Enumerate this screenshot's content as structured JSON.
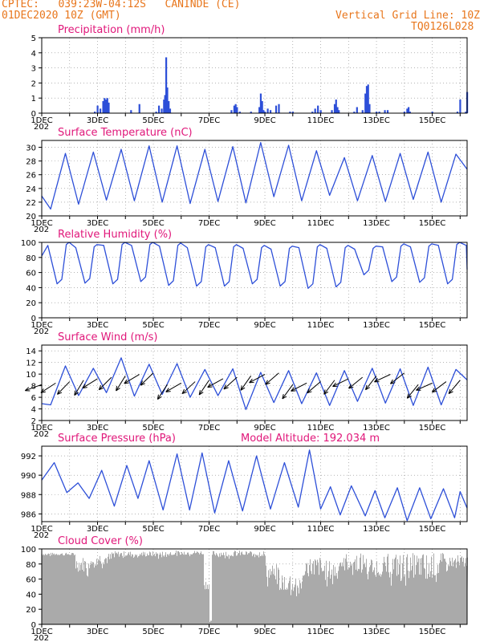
{
  "header": {
    "line1": "CPTEC:   039:23W-04:12S   CANINDE (CE)",
    "line2": "01DEC2020 10Z (GMT)",
    "grid_note": "Vertical Grid Line: 10Z",
    "code": "TQ0126L028"
  },
  "x_axis": {
    "tick_labels": [
      "1DEC",
      "3DEC",
      "5DEC",
      "7DEC",
      "9DEC",
      "11DEC",
      "13DEC",
      "15DEC"
    ],
    "cut_label": "202",
    "range_days": [
      0,
      15.25
    ]
  },
  "colors": {
    "title": "#e0177a",
    "header": "#e8761c",
    "line": "#2d4fd8",
    "bar": "#2d4fd8",
    "cloud": "#aaaaaa"
  },
  "chart_data": [
    {
      "type": "bar",
      "title": "Precipitation (mm/h)",
      "ylim": [
        0,
        5
      ],
      "yticks": [
        0,
        1,
        2,
        3,
        4,
        5
      ],
      "x_unit": "days since 01DEC2020 10Z",
      "x": [
        1.9,
        2.0,
        2.1,
        2.2,
        2.25,
        2.3,
        2.35,
        2.4,
        3.2,
        3.5,
        4.1,
        4.2,
        4.3,
        4.38,
        4.42,
        4.46,
        4.5,
        4.55,
        4.6,
        6.8,
        6.9,
        6.95,
        7.0,
        7.1,
        7.5,
        7.8,
        7.85,
        7.9,
        7.95,
        8.0,
        8.1,
        8.2,
        8.4,
        8.5,
        8.9,
        9.0,
        9.7,
        9.8,
        9.9,
        10.0,
        10.4,
        10.5,
        10.55,
        10.6,
        10.65,
        11.2,
        11.3,
        11.5,
        11.6,
        11.65,
        11.7,
        11.75,
        12.0,
        12.1,
        12.3,
        12.4,
        13.0,
        13.1,
        13.15,
        13.2,
        14.0,
        14.9,
        15.0,
        15.2,
        15.25
      ],
      "values": [
        0.1,
        0.5,
        0.3,
        0.8,
        1.0,
        0.9,
        1.0,
        0.7,
        0.2,
        0.6,
        0.1,
        0.5,
        0.3,
        0.9,
        1.2,
        3.7,
        1.7,
        0.8,
        0.3,
        0.2,
        0.5,
        0.6,
        0.4,
        0.1,
        0.1,
        0.4,
        1.3,
        0.8,
        0.2,
        0.1,
        0.3,
        0.2,
        0.5,
        0.6,
        0.1,
        0.1,
        0.1,
        0.3,
        0.5,
        0.2,
        0.2,
        0.6,
        0.9,
        0.4,
        0.2,
        0.1,
        0.4,
        0.2,
        1.3,
        1.8,
        1.9,
        0.6,
        0.1,
        0.1,
        0.2,
        0.2,
        0.1,
        0.3,
        0.4,
        0.1,
        0.1,
        0.1,
        0.9,
        0.1,
        1.4
      ]
    },
    {
      "type": "line",
      "title": "Surface Temperature (nC)",
      "ylim": [
        20,
        31
      ],
      "yticks": [
        20,
        22,
        24,
        26,
        28,
        30
      ],
      "min_max": [
        [
          21.0,
          29.1
        ],
        [
          21.7,
          29.3
        ],
        [
          22.3,
          29.7
        ],
        [
          22.2,
          30.2
        ],
        [
          22.0,
          30.2
        ],
        [
          21.8,
          29.7
        ],
        [
          22.1,
          30.1
        ],
        [
          21.9,
          30.7
        ],
        [
          22.8,
          30.3
        ],
        [
          22.2,
          29.5
        ],
        [
          23.0,
          28.5
        ],
        [
          22.2,
          28.8
        ],
        [
          22.1,
          29.1
        ],
        [
          22.4,
          29.3
        ],
        [
          22.0,
          29.0
        ],
        [
          23.2,
          30.8
        ]
      ],
      "start": 22.9,
      "end": 26.8
    },
    {
      "type": "line",
      "title": "Relative Humidity (%)",
      "ylim": [
        0,
        100
      ],
      "yticks": [
        0,
        20,
        40,
        60,
        80,
        100
      ],
      "min_max": [
        [
          45,
          100
        ],
        [
          46,
          97
        ],
        [
          45,
          100
        ],
        [
          48,
          100
        ],
        [
          43,
          99
        ],
        [
          42,
          97
        ],
        [
          42,
          97
        ],
        [
          45,
          96
        ],
        [
          42,
          95
        ],
        [
          39,
          97
        ],
        [
          41,
          96
        ],
        [
          57,
          95
        ],
        [
          48,
          98
        ],
        [
          47,
          98
        ],
        [
          45,
          100
        ],
        [
          38,
          100
        ]
      ],
      "start": 82,
      "end": 64
    },
    {
      "type": "line",
      "title": "Surface Wind (m/s)",
      "ylim": [
        2,
        15
      ],
      "yticks": [
        2,
        4,
        6,
        8,
        10,
        12,
        14
      ],
      "daily_speed_min_max": [
        [
          4.7,
          11.4
        ],
        [
          6.3,
          11.0
        ],
        [
          6.8,
          12.8
        ],
        [
          6.2,
          11.7
        ],
        [
          6.5,
          11.8
        ],
        [
          6.0,
          10.8
        ],
        [
          6.3,
          10.9
        ],
        [
          3.9,
          10.3
        ],
        [
          5.1,
          10.6
        ],
        [
          4.9,
          10.2
        ],
        [
          4.6,
          10.6
        ],
        [
          5.3,
          11.0
        ],
        [
          5.0,
          10.9
        ],
        [
          4.6,
          11.2
        ],
        [
          4.7,
          10.8
        ],
        [
          3.6,
          11.1
        ]
      ],
      "start": 4.9,
      "end": 9.0,
      "arrows": "easterly trade-wind vectors every 12 h"
    },
    {
      "type": "line",
      "title": "Surface Pressure (hPa)",
      "annotation": "Model Altitude: 192.034  m",
      "ylim": [
        985.2,
        993.0
      ],
      "yticks": [
        986,
        988,
        990,
        992
      ],
      "peaks_troughs": [
        [
          0,
          989.5
        ],
        [
          0.45,
          991.3
        ],
        [
          0.9,
          988.2
        ],
        [
          1.3,
          989.2
        ],
        [
          1.7,
          987.6
        ],
        [
          2.15,
          990.5
        ],
        [
          2.6,
          986.8
        ],
        [
          3.05,
          991.0
        ],
        [
          3.45,
          987.6
        ],
        [
          3.85,
          991.5
        ],
        [
          4.35,
          986.4
        ],
        [
          4.85,
          992.2
        ],
        [
          5.3,
          986.4
        ],
        [
          5.75,
          992.3
        ],
        [
          6.2,
          986.1
        ],
        [
          6.7,
          991.5
        ],
        [
          7.2,
          986.3
        ],
        [
          7.7,
          992.0
        ],
        [
          8.2,
          986.5
        ],
        [
          8.7,
          991.3
        ],
        [
          9.2,
          986.7
        ],
        [
          9.6,
          992.6
        ],
        [
          10.0,
          986.5
        ],
        [
          10.35,
          988.8
        ],
        [
          10.7,
          985.9
        ],
        [
          11.1,
          988.9
        ],
        [
          11.6,
          985.8
        ],
        [
          11.95,
          988.4
        ],
        [
          12.3,
          985.6
        ],
        [
          12.75,
          988.7
        ],
        [
          13.1,
          985.3
        ],
        [
          13.55,
          988.7
        ],
        [
          13.95,
          985.5
        ],
        [
          14.4,
          988.6
        ],
        [
          14.8,
          985.6
        ],
        [
          15.0,
          988.3
        ],
        [
          15.25,
          986.6
        ]
      ]
    },
    {
      "type": "area",
      "title": "Cloud Cover (%)",
      "ylim": [
        0,
        100
      ],
      "yticks": [
        0,
        20,
        40,
        60,
        80,
        100
      ],
      "segments": [
        [
          0,
          1.2,
          87,
          95
        ],
        [
          1.2,
          1.7,
          45,
          90
        ],
        [
          1.7,
          2.5,
          60,
          95
        ],
        [
          2.5,
          4.6,
          80,
          97
        ],
        [
          4.6,
          5.8,
          85,
          98
        ],
        [
          5.8,
          6.0,
          30,
          60
        ],
        [
          6.0,
          6.1,
          0,
          5
        ],
        [
          6.1,
          8.0,
          80,
          98
        ],
        [
          8.0,
          8.5,
          30,
          80
        ],
        [
          8.5,
          9.4,
          10,
          70
        ],
        [
          9.4,
          10.0,
          30,
          90
        ],
        [
          10.0,
          10.6,
          25,
          85
        ],
        [
          10.6,
          11.6,
          40,
          95
        ],
        [
          11.6,
          12.4,
          30,
          90
        ],
        [
          12.4,
          14.4,
          20,
          95
        ],
        [
          14.4,
          15.25,
          55,
          92
        ]
      ]
    }
  ]
}
